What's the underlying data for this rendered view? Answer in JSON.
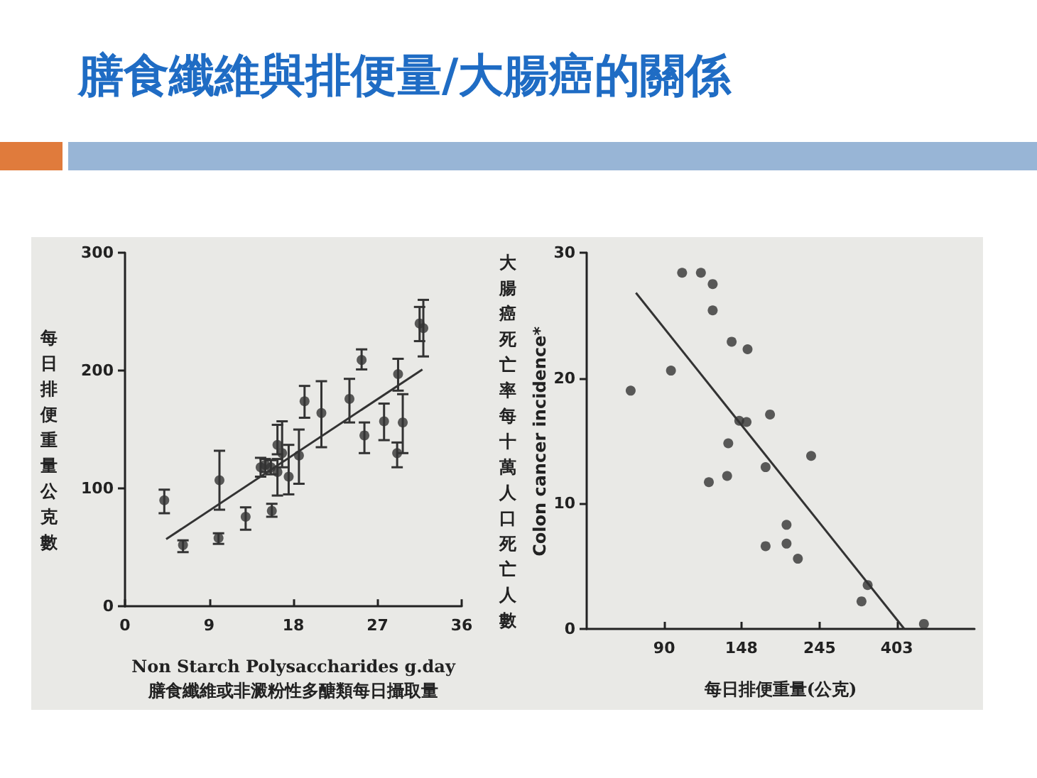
{
  "chart_data": [
    {
      "type": "scatter",
      "title": "膳食纖維與排便量/大腸癌的關係",
      "xlabel": "Non Starch Polysaccharides g.day\n膳食纖維或非澱粉性多醣類每日攝取量",
      "ylabel": "每日排便重量公克數",
      "xlim": [
        0,
        36
      ],
      "xticks": [
        0,
        9,
        18,
        27,
        36
      ],
      "ylim": [
        0,
        300
      ],
      "yticks": [
        0,
        100,
        200,
        300
      ],
      "series": [
        {
          "marker": "circle",
          "color": "#333333",
          "x": [
            4.2,
            6.2,
            10.0,
            10.1,
            12.9,
            14.5,
            15.0,
            15.6,
            15.7,
            16.3,
            16.3,
            16.8,
            17.5,
            18.6,
            19.2,
            21.0,
            24.0,
            25.3,
            25.6,
            27.7,
            29.1,
            29.2,
            29.7,
            31.5,
            31.9
          ],
          "values": [
            90,
            52,
            58,
            107,
            76,
            118,
            120,
            118,
            81,
            137,
            114,
            130,
            110,
            128,
            174,
            164,
            176,
            209,
            145,
            157,
            130,
            197,
            156,
            240,
            236
          ],
          "errors": [
            [
              79,
              99
            ],
            [
              46,
              56
            ],
            [
              53,
              62
            ],
            [
              82,
              132
            ],
            [
              65,
              84
            ],
            [
              110,
              126
            ],
            [
              114,
              125
            ],
            [
              112,
              124
            ],
            [
              76,
              87
            ],
            [
              129,
              154
            ],
            [
              94,
              125
            ],
            [
              118,
              157
            ],
            [
              95,
              137
            ],
            [
              104,
              150
            ],
            [
              160,
              187
            ],
            [
              135,
              191
            ],
            [
              156,
              193
            ],
            [
              201,
              218
            ],
            [
              130,
              156
            ],
            [
              141,
              172
            ],
            [
              118,
              139
            ],
            [
              183,
              210
            ],
            [
              130,
              180
            ],
            [
              225,
              254
            ],
            [
              212,
              260
            ]
          ]
        },
        {
          "type": "line",
          "marker": "none",
          "color": "#333333",
          "x": [
            4.4,
            31.8
          ],
          "values": [
            57,
            201
          ]
        }
      ]
    },
    {
      "type": "scatter",
      "xlabel": "每日排便重量(公克)",
      "ylabel": "大腸癌死亡率每十萬人口死亡人數\nColon cancer incidence*",
      "log": "x",
      "xlim": [
        54.6,
        665
      ],
      "xticks": [
        90,
        148,
        245,
        403
      ],
      "ylim": [
        0,
        30
      ],
      "yticks": [
        0,
        10,
        20,
        30
      ],
      "series": [
        {
          "marker": "circle",
          "color": "#333333",
          "x": [
            72.5,
            94,
            101,
            114,
            123,
            123,
            120,
            135,
            136,
            139,
            154,
            146,
            153,
            178,
            173,
            173,
            198,
            198,
            213,
            232,
            321,
            334,
            480
          ],
          "values": [
            19.0,
            20.6,
            28.4,
            28.4,
            27.5,
            25.4,
            11.7,
            12.2,
            14.8,
            22.9,
            22.3,
            16.6,
            16.5,
            17.1,
            12.9,
            6.6,
            8.3,
            6.8,
            5.6,
            13.8,
            2.2,
            3.5,
            0.4
          ]
        },
        {
          "type": "line",
          "marker": "none",
          "color": "#333333",
          "x": [
            75,
            423
          ],
          "values": [
            26.8,
            0
          ]
        }
      ]
    }
  ]
}
